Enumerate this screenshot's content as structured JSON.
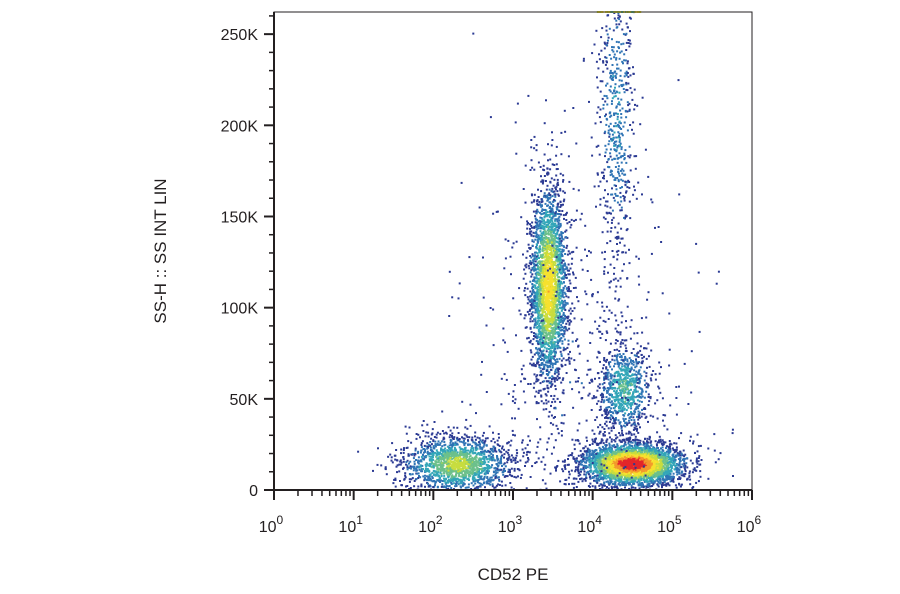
{
  "chart_data": {
    "type": "scatter",
    "subtype": "flow-cytometry-density-dot-plot",
    "xlabel": "CD52 PE",
    "ylabel": "SS-H :: SS INT LIN",
    "x_scale": "log",
    "y_scale": "linear",
    "xlim": [
      1,
      1000000
    ],
    "ylim": [
      0,
      262144
    ],
    "x_ticks": [
      {
        "value": 1,
        "base": "10",
        "exp": "0"
      },
      {
        "value": 10,
        "base": "10",
        "exp": "1"
      },
      {
        "value": 100,
        "base": "10",
        "exp": "2"
      },
      {
        "value": 1000,
        "base": "10",
        "exp": "3"
      },
      {
        "value": 10000,
        "base": "10",
        "exp": "4"
      },
      {
        "value": 100000,
        "base": "10",
        "exp": "5"
      },
      {
        "value": 1000000,
        "base": "10",
        "exp": "6"
      }
    ],
    "y_ticks": [
      {
        "value": 0,
        "label": "0"
      },
      {
        "value": 50000,
        "label": "50K"
      },
      {
        "value": 100000,
        "label": "100K"
      },
      {
        "value": 150000,
        "label": "150K"
      },
      {
        "value": 200000,
        "label": "200K"
      },
      {
        "value": 250000,
        "label": "250K"
      }
    ],
    "colormap": [
      "#2b3a93",
      "#2f74b5",
      "#33a6b8",
      "#6cc08b",
      "#c7dd3f",
      "#f6e12f",
      "#f39a2c",
      "#e3262a"
    ],
    "populations": [
      {
        "cx_log10": 2.3,
        "cy": 14000,
        "sx_log10": 0.35,
        "sy": 8000,
        "n": 1700,
        "peak_density": 0.55
      },
      {
        "cx_log10": 3.45,
        "cy": 112000,
        "sx_log10": 0.12,
        "sy": 28000,
        "n": 2600,
        "peak_density": 0.72
      },
      {
        "cx_log10": 4.5,
        "cy": 14000,
        "sx_log10": 0.33,
        "sy": 6000,
        "n": 3200,
        "peak_density": 1.0
      },
      {
        "cx_log10": 4.4,
        "cy": 55000,
        "sx_log10": 0.18,
        "sy": 13000,
        "n": 800,
        "peak_density": 0.4
      },
      {
        "cx_log10": 4.3,
        "cy": 205000,
        "sx_log10": 0.13,
        "sy": 45000,
        "n": 550,
        "peak_density": 0.25
      },
      {
        "cx_log10": 3.8,
        "cy": 60000,
        "sx_log10": 0.7,
        "sy": 70000,
        "n": 500,
        "peak_density": 0.1
      }
    ],
    "saturation_band": {
      "x_log10_range": [
        4.05,
        4.6
      ],
      "y": 262144
    },
    "grid": false,
    "legend": "none"
  }
}
